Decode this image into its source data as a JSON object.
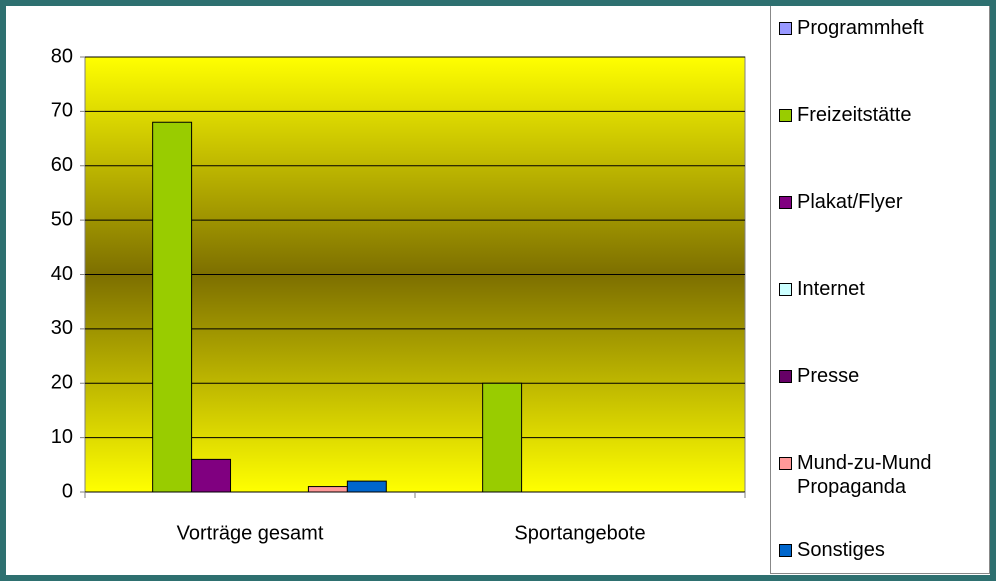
{
  "chart_data": {
    "type": "bar",
    "categories": [
      "Vorträge gesamt",
      "Sportangebote"
    ],
    "series": [
      {
        "name": "Programmheft",
        "color": "#9999ff",
        "values": [
          0,
          0
        ]
      },
      {
        "name": "Freizeitstätte",
        "color": "#99cc00",
        "values": [
          68,
          20
        ]
      },
      {
        "name": "Plakat/Flyer",
        "color": "#800080",
        "values": [
          6,
          0
        ]
      },
      {
        "name": "Internet",
        "color": "#ccffff",
        "values": [
          0,
          0
        ]
      },
      {
        "name": "Presse",
        "color": "#660066",
        "values": [
          0,
          0
        ]
      },
      {
        "name": "Mund-zu-Mund Propaganda",
        "color": "#ff9999",
        "values": [
          1,
          0
        ]
      },
      {
        "name": "Sonstiges",
        "color": "#0066cc",
        "values": [
          2,
          0
        ]
      }
    ],
    "ylim": [
      0,
      80
    ],
    "yticks": [
      0,
      10,
      20,
      30,
      40,
      50,
      60,
      70,
      80
    ],
    "grid": true,
    "legend": "right"
  }
}
